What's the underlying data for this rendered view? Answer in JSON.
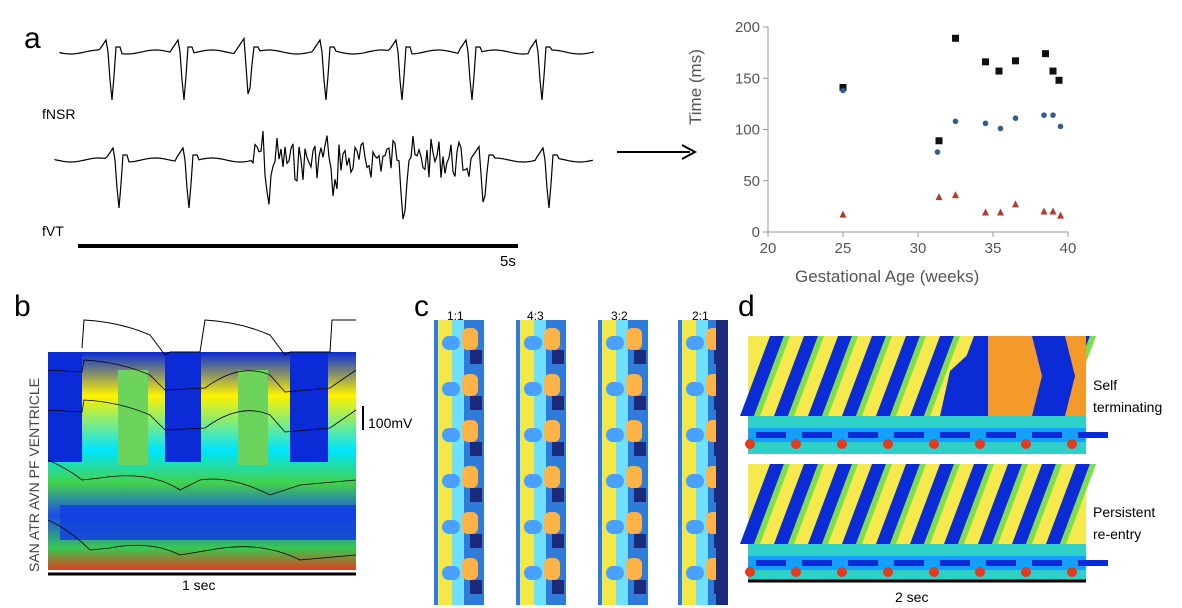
{
  "panel_labels": {
    "a": "a",
    "b": "b",
    "c": "c",
    "d": "d"
  },
  "panel_a": {
    "trace1_label": "fNSR",
    "trace2_label": "fVT",
    "scale_label": "5s"
  },
  "panel_b": {
    "row_labels": "SAN ATR AVN PF VENTRICLE",
    "voltage_scale": "100mV",
    "time_scale": "1 sec"
  },
  "panel_c": {
    "ratios": [
      "1:1",
      "4:3",
      "3:2",
      "2:1"
    ]
  },
  "panel_d": {
    "top_label_line1": "Self",
    "top_label_line2": "terminating",
    "bottom_label_line1": "Persistent",
    "bottom_label_line2": "re-entry",
    "time_scale": "2 sec"
  },
  "chart_data": {
    "type": "scatter",
    "title": "",
    "xlabel": "Gestational Age (weeks)",
    "ylabel": "Time (ms)",
    "xlim": [
      20,
      40
    ],
    "ylim": [
      0,
      200
    ],
    "xticks": [
      20,
      25,
      30,
      35,
      40
    ],
    "yticks": [
      0,
      50,
      100,
      150,
      200
    ],
    "grid": false,
    "series": [
      {
        "marker": "square",
        "color": "#111111",
        "points": [
          [
            25,
            141
          ],
          [
            31.4,
            89
          ],
          [
            32.5,
            189
          ],
          [
            34.5,
            166
          ],
          [
            35.4,
            157
          ],
          [
            36.5,
            167
          ],
          [
            38.5,
            174
          ],
          [
            39,
            157
          ],
          [
            39.4,
            148
          ]
        ]
      },
      {
        "marker": "circle",
        "color": "#2f5f8f",
        "points": [
          [
            25,
            138
          ],
          [
            31.3,
            78
          ],
          [
            32.5,
            108
          ],
          [
            34.5,
            106
          ],
          [
            35.5,
            101
          ],
          [
            36.5,
            111
          ],
          [
            38.4,
            114
          ],
          [
            39,
            114
          ],
          [
            39.5,
            103
          ]
        ]
      },
      {
        "marker": "triangle",
        "color": "#b23a2e",
        "points": [
          [
            25,
            17
          ],
          [
            31.4,
            34
          ],
          [
            32.5,
            36
          ],
          [
            34.5,
            19
          ],
          [
            35.5,
            19
          ],
          [
            36.5,
            27
          ],
          [
            38.4,
            20
          ],
          [
            39,
            20
          ],
          [
            39.5,
            16
          ]
        ]
      }
    ]
  }
}
